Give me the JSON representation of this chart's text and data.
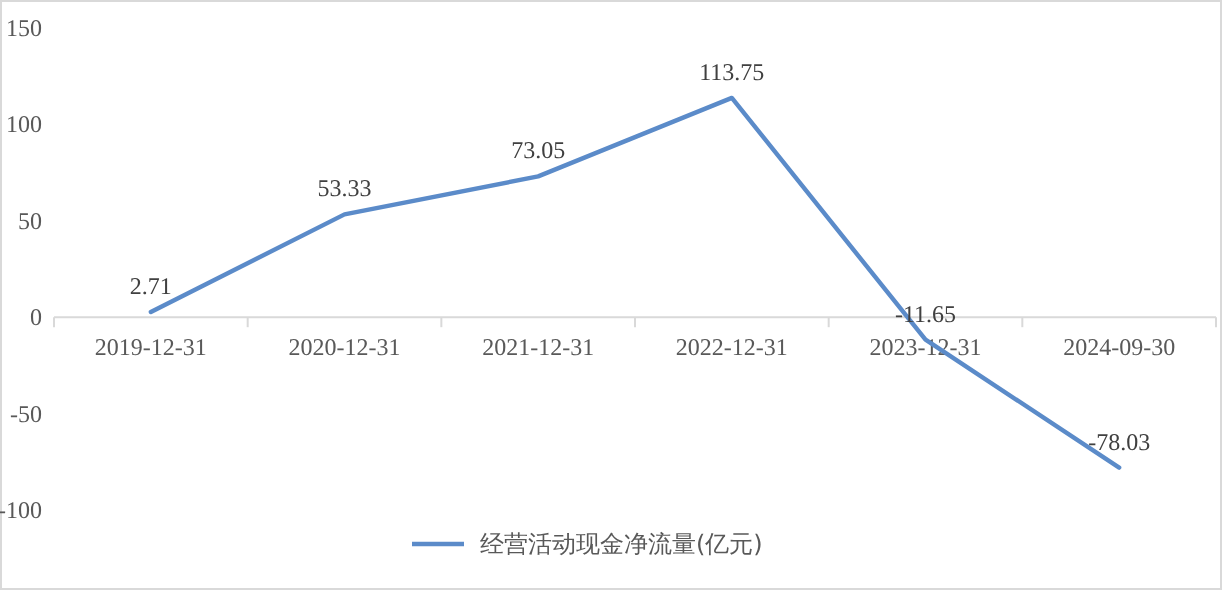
{
  "chart_data": {
    "type": "line",
    "categories": [
      "2019-12-31",
      "2020-12-31",
      "2021-12-31",
      "2022-12-31",
      "2023-12-31",
      "2024-09-30"
    ],
    "series": [
      {
        "name": "经营活动现金净流量(亿元)",
        "color": "#5b8bc9",
        "values": [
          2.71,
          53.33,
          73.05,
          113.75,
          -11.65,
          -78.03
        ]
      }
    ],
    "ylim": [
      -100,
      150
    ],
    "yticks": [
      -100,
      -50,
      0,
      50,
      100,
      150
    ],
    "data_labels": true,
    "legend": "bottom",
    "grid": false
  }
}
